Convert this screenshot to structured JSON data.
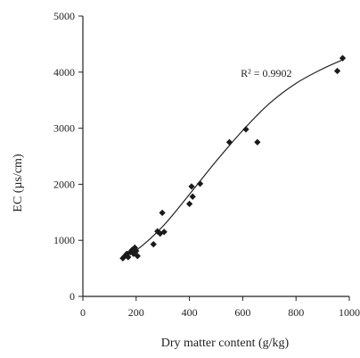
{
  "chart_data": {
    "type": "scatter",
    "xlabel": "Dry matter content (g/kg)",
    "ylabel": "EC (µs/cm)",
    "xlim": [
      0,
      1000
    ],
    "ylim": [
      0,
      5000
    ],
    "xticks": [
      0,
      200,
      400,
      600,
      800,
      1000
    ],
    "yticks": [
      0,
      1000,
      2000,
      3000,
      4000,
      5000
    ],
    "grid": false,
    "annotation": {
      "text": "R² = 0.9902",
      "near_x": 900,
      "near_y": 4200
    },
    "points": [
      {
        "x": 150,
        "y": 680
      },
      {
        "x": 158,
        "y": 720
      },
      {
        "x": 165,
        "y": 760
      },
      {
        "x": 170,
        "y": 700
      },
      {
        "x": 178,
        "y": 790
      },
      {
        "x": 185,
        "y": 830
      },
      {
        "x": 190,
        "y": 760
      },
      {
        "x": 195,
        "y": 870
      },
      {
        "x": 200,
        "y": 810
      },
      {
        "x": 205,
        "y": 720
      },
      {
        "x": 265,
        "y": 930
      },
      {
        "x": 280,
        "y": 1160
      },
      {
        "x": 290,
        "y": 1120
      },
      {
        "x": 298,
        "y": 1490
      },
      {
        "x": 305,
        "y": 1150
      },
      {
        "x": 400,
        "y": 1650
      },
      {
        "x": 408,
        "y": 1960
      },
      {
        "x": 412,
        "y": 1780
      },
      {
        "x": 440,
        "y": 2010
      },
      {
        "x": 550,
        "y": 2750
      },
      {
        "x": 612,
        "y": 2980
      },
      {
        "x": 655,
        "y": 2750
      },
      {
        "x": 955,
        "y": 4020
      },
      {
        "x": 975,
        "y": 4250
      }
    ],
    "trendline": {
      "x": [
        150,
        200,
        300,
        400,
        500,
        600,
        700,
        800,
        900,
        980
      ],
      "y": [
        720,
        820,
        1250,
        1820,
        2410,
        2960,
        3440,
        3800,
        4060,
        4230
      ]
    }
  }
}
